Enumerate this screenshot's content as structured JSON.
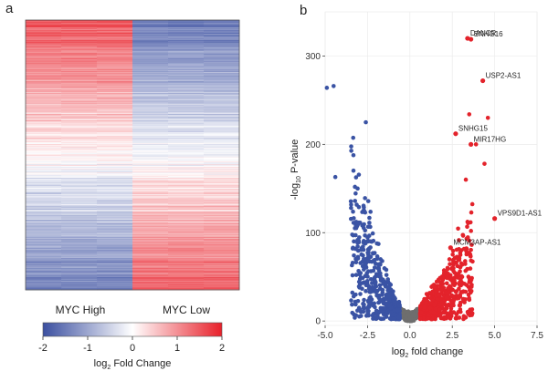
{
  "panels": {
    "a": {
      "label": "a"
    },
    "b": {
      "label": "b"
    }
  },
  "chart_data": [
    {
      "type": "heatmap",
      "panel": "a",
      "columns": [
        "MYC High",
        "MYC High",
        "MYC High",
        "MYC Low",
        "MYC Low",
        "MYC Low"
      ],
      "groups": [
        "MYC High",
        "MYC Low"
      ],
      "row_count": 400,
      "description_of_pattern": "rows sorted: MYC High red→blue top-to-bottom, MYC Low blue→red",
      "colorbar": {
        "title_main": "log",
        "title_sub": "2",
        "title_rest": " Fold Change",
        "range": [
          -2,
          2
        ],
        "ticks": [
          -2,
          -1,
          0,
          1,
          2
        ],
        "colors": [
          "#3b4fa0",
          "#ffffff",
          "#e8202a"
        ]
      }
    },
    {
      "type": "scatter",
      "panel": "b",
      "title": "",
      "xlabel_main": "log",
      "xlabel_sub": "2",
      "xlabel_rest": " fold change",
      "ylabel_main": "-log",
      "ylabel_sub": "10",
      "ylabel_rest": " P-value",
      "xlim": [
        -5,
        7.5
      ],
      "ylim": [
        -5,
        350
      ],
      "xticks": [
        -5.0,
        -2.5,
        0.0,
        2.5,
        5.0,
        7.5
      ],
      "xtick_labels": [
        "-5.0",
        "-2.5",
        "0.0",
        "2.5",
        "5.0",
        "7.5"
      ],
      "yticks": [
        0,
        100,
        200,
        300
      ],
      "grid": true,
      "colors": {
        "down": "#3a53a4",
        "up": "#e3232b",
        "ns": "#6e6e6e"
      },
      "labeled_points": [
        {
          "name": "DANCR",
          "x": 3.4,
          "y": 320
        },
        {
          "name": "SNHG16",
          "x": 3.6,
          "y": 319
        },
        {
          "name": "USP2-AS1",
          "x": 4.3,
          "y": 272
        },
        {
          "name": "SNHG15",
          "x": 2.7,
          "y": 212
        },
        {
          "name": "MIR17HG",
          "x": 3.6,
          "y": 200
        },
        {
          "name": "VPS9D1-AS1",
          "x": 5.0,
          "y": 116
        },
        {
          "name": "MCM3AP-AS1",
          "x": 2.4,
          "y": 83
        }
      ],
      "extra_points": [
        {
          "x": -4.5,
          "y": 266,
          "group": "down"
        },
        {
          "x": -4.9,
          "y": 264,
          "group": "down"
        },
        {
          "x": -2.6,
          "y": 225,
          "group": "down"
        },
        {
          "x": -4.4,
          "y": 163,
          "group": "down"
        },
        {
          "x": 3.5,
          "y": 234,
          "group": "up"
        },
        {
          "x": 4.6,
          "y": 230,
          "group": "up"
        },
        {
          "x": 3.9,
          "y": 200,
          "group": "up"
        },
        {
          "x": 4.4,
          "y": 178,
          "group": "up"
        },
        {
          "x": 3.3,
          "y": 160,
          "group": "up"
        }
      ]
    }
  ]
}
